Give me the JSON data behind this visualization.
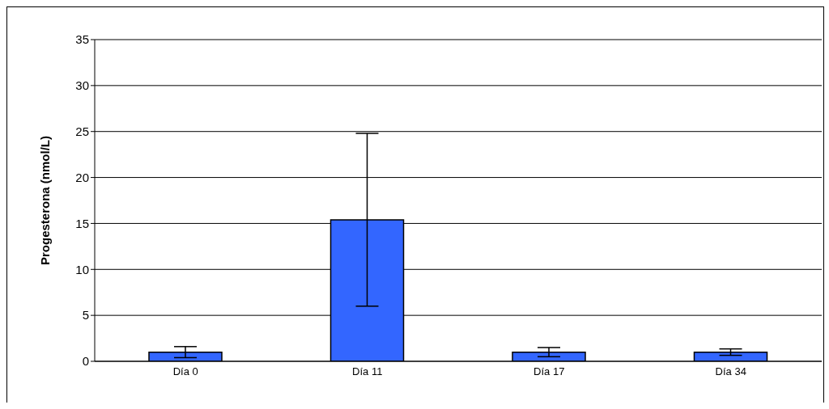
{
  "chart_data": {
    "type": "bar",
    "ylabel": "Progesterona (nmol/L)",
    "categories": [
      "Día 0",
      "Día 11",
      "Día 17",
      "Día 34"
    ],
    "values": [
      1.0,
      15.4,
      1.0,
      1.0
    ],
    "errors": [
      0.6,
      9.4,
      0.5,
      0.35
    ],
    "color": "#3366ff",
    "ylim": [
      0,
      35
    ],
    "yticks": [
      0,
      5,
      10,
      15,
      20,
      25,
      30,
      35
    ],
    "grid": "y"
  }
}
